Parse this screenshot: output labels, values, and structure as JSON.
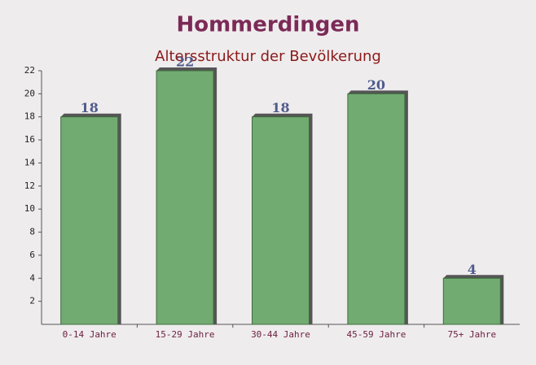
{
  "chart_data": {
    "type": "bar",
    "title": "Hommerdingen",
    "subtitle": "Altersstruktur der Bevölkerung",
    "categories": [
      "0-14 Jahre",
      "15-29 Jahre",
      "30-44 Jahre",
      "45-59 Jahre",
      "75+ Jahre"
    ],
    "values": [
      18,
      22,
      18,
      20,
      4
    ],
    "color": "#6aa86a",
    "ylim": [
      0,
      22
    ],
    "yticks": [
      2,
      4,
      6,
      8,
      10,
      12,
      14,
      16,
      18,
      20,
      22
    ]
  }
}
